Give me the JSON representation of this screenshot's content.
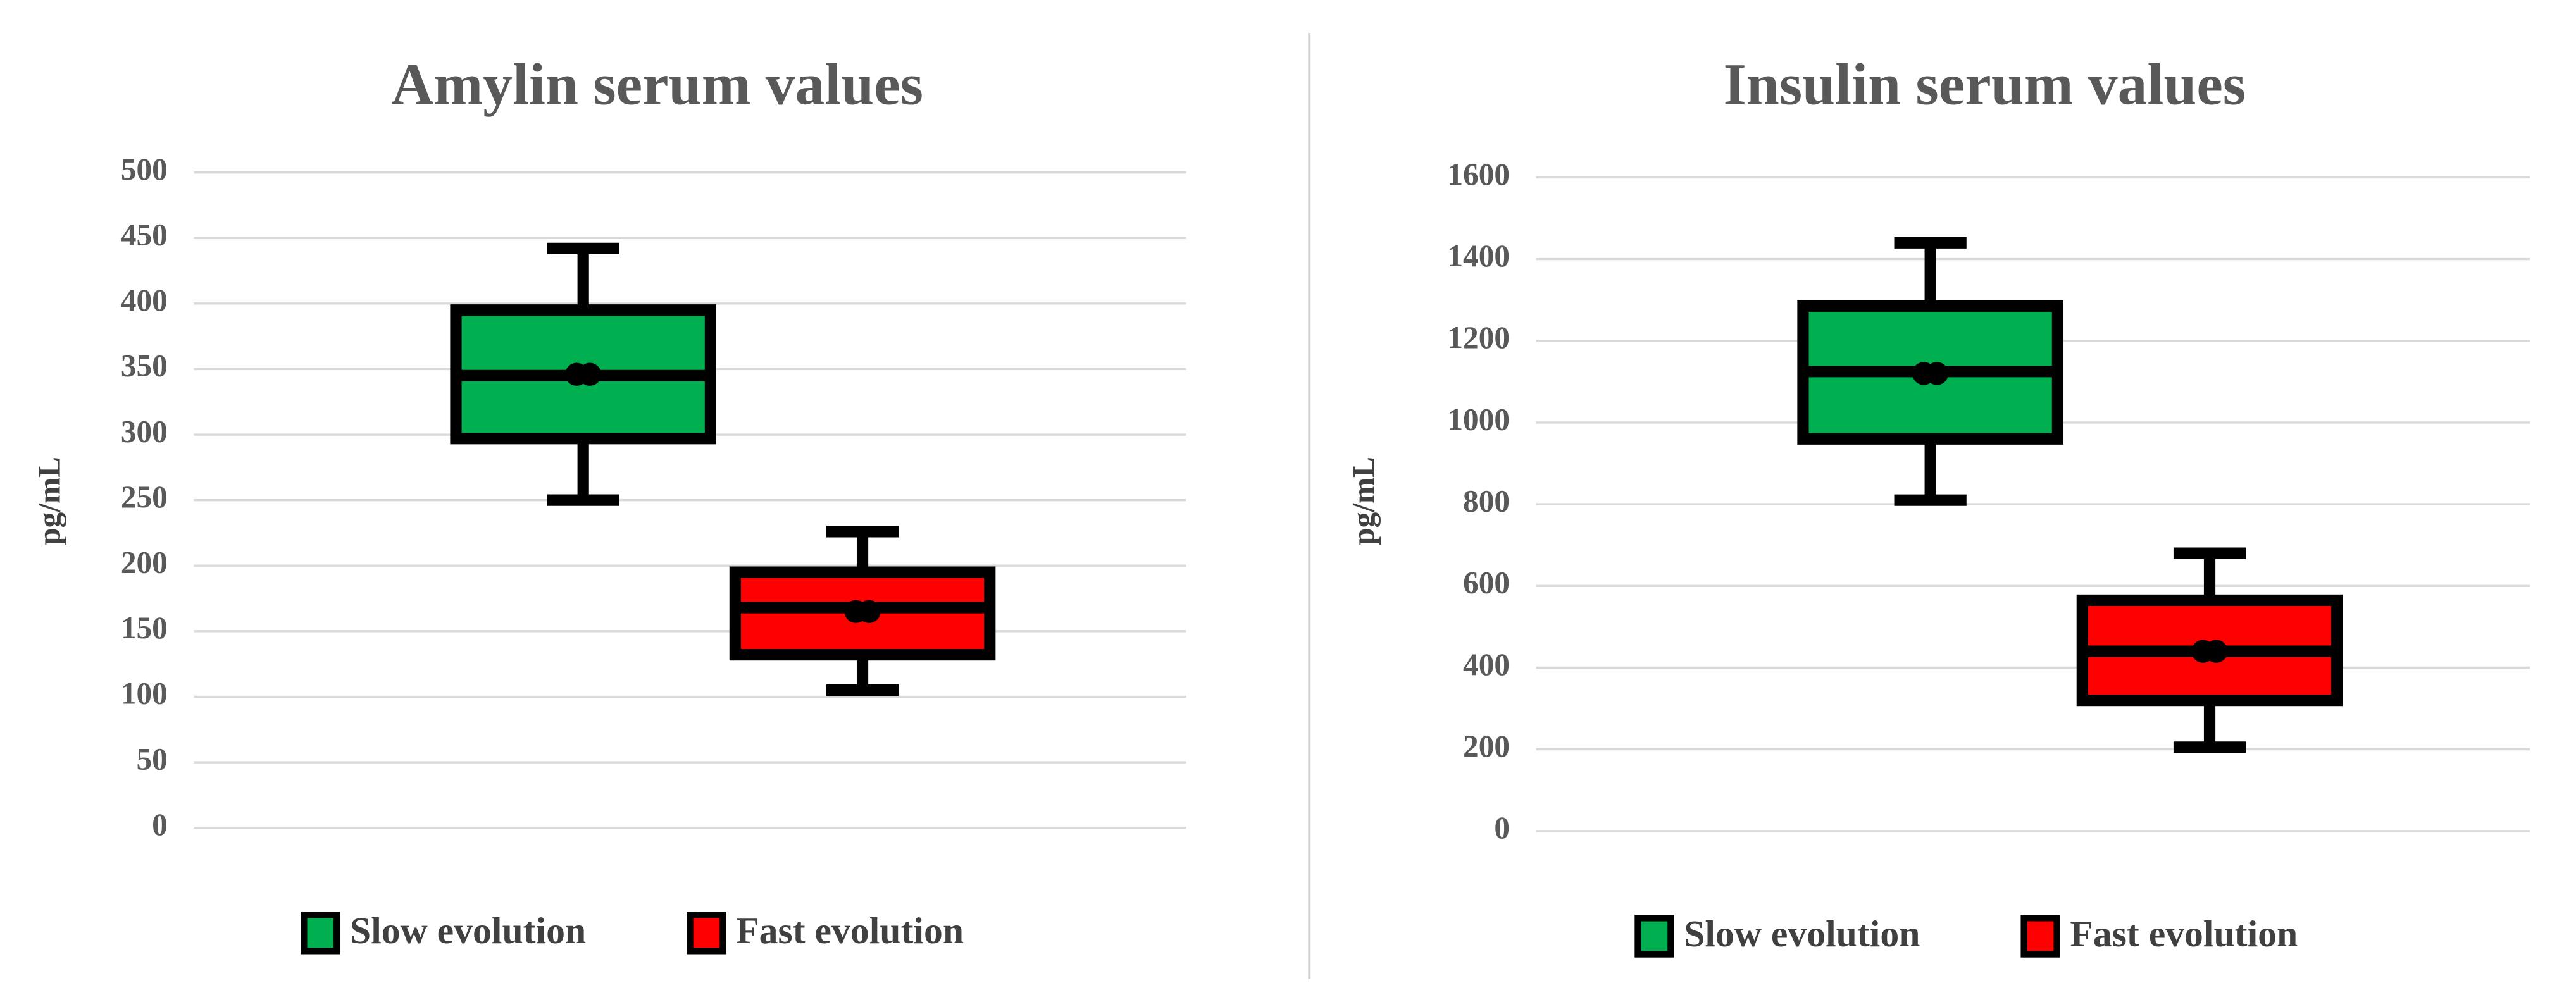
{
  "chart_data": [
    {
      "type": "box",
      "title": "Amylin serum values",
      "y_label": "pg/mL",
      "ylim": [
        0,
        500
      ],
      "yticks": [
        0,
        50,
        100,
        150,
        200,
        250,
        300,
        350,
        400,
        450,
        500
      ],
      "grid": true,
      "series": [
        {
          "name": "Slow evolution",
          "color": "#00b050",
          "min": 250,
          "q1": 297,
          "median": 345,
          "q3": 395,
          "max": 442,
          "mean": 346
        },
        {
          "name": "Fast evolution",
          "color": "#ff0000",
          "min": 105,
          "q1": 132,
          "median": 168,
          "q3": 195,
          "max": 226,
          "mean": 165
        }
      ]
    },
    {
      "type": "box",
      "title": "Insulin serum values",
      "y_label": "pg/mL",
      "ylim": [
        0,
        1600
      ],
      "yticks": [
        0,
        200,
        400,
        600,
        800,
        1000,
        1200,
        1400,
        1600
      ],
      "grid": true,
      "series": [
        {
          "name": "Slow evolution",
          "color": "#00b050",
          "min": 810,
          "q1": 960,
          "median": 1125,
          "q3": 1285,
          "max": 1440,
          "mean": 1120
        },
        {
          "name": "Fast evolution",
          "color": "#ff0000",
          "min": 205,
          "q1": 320,
          "median": 440,
          "q3": 565,
          "max": 680,
          "mean": 440
        }
      ]
    }
  ]
}
